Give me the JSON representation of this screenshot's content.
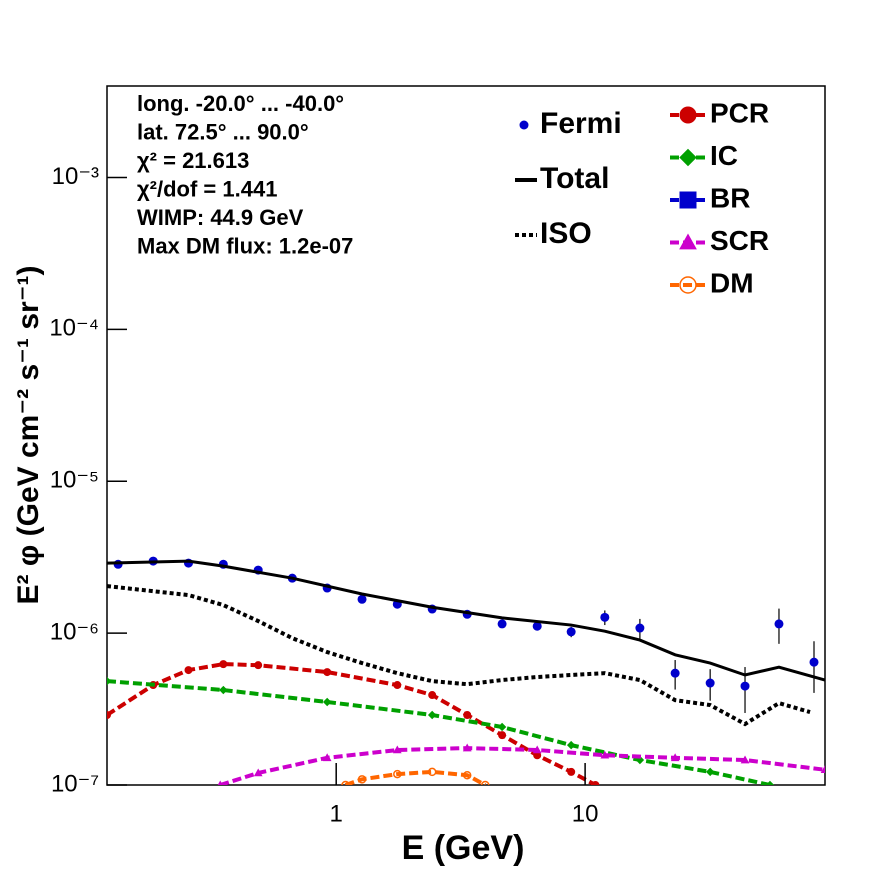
{
  "chart_data": {
    "type": "line",
    "x_label": "E (GeV)",
    "y_label": "E² φ (GeV cm⁻² s⁻¹ sr⁻¹)",
    "log_x": true,
    "log_y": true,
    "xlim": [
      0.12,
      92.0
    ],
    "ylim": [
      1e-07,
      0.004
    ],
    "xticks": [
      1,
      10
    ],
    "yticks": [
      {
        "value": 1e-07,
        "label": "10⁻⁷"
      },
      {
        "value": 1e-06,
        "label": "10⁻⁶"
      },
      {
        "value": 1e-05,
        "label": "10⁻⁵"
      },
      {
        "value": 0.0001,
        "label": "10⁻⁴"
      },
      {
        "value": 0.001,
        "label": "10⁻³"
      }
    ],
    "annotations": [
      "long. -20.0° ... -40.0°",
      "lat. 72.5° ... 90.0°",
      "χ² = 21.613",
      "χ²/dof = 1.441",
      "WIMP: 44.9 GeV",
      "Max DM flux: 1.2e-07"
    ],
    "series": [
      {
        "name": "Fermi",
        "type": "scatter",
        "color": "#0000cc",
        "legend_column": 1,
        "x": [
          0.133,
          0.184,
          0.255,
          0.352,
          0.486,
          0.666,
          0.92,
          1.27,
          1.76,
          2.43,
          3.36,
          4.64,
          6.42,
          8.79,
          12.0,
          16.6,
          23.0,
          31.8,
          43.9,
          60.1,
          83.1
        ],
        "values": [
          2.84e-06,
          2.98e-06,
          2.89e-06,
          2.84e-06,
          2.6e-06,
          2.3e-06,
          1.98e-06,
          1.67e-06,
          1.55e-06,
          1.44e-06,
          1.33e-06,
          1.15e-06,
          1.11e-06,
          1.02e-06,
          1.27e-06,
          1.08e-06,
          5.45e-07,
          4.69e-07,
          4.48e-07,
          1.15e-06,
          6.44e-07
        ],
        "errors": [
          5e-08,
          5e-08,
          5e-08,
          5e-08,
          5e-08,
          4e-08,
          4e-08,
          3e-08,
          3e-08,
          3e-08,
          3e-08,
          3e-08,
          6e-08,
          8e-08,
          1.4e-07,
          1.6e-07,
          1.2e-07,
          1.1e-07,
          1.5e-07,
          3e-07,
          2.4e-07
        ]
      },
      {
        "name": "Total",
        "type": "line",
        "style": "solid",
        "color": "#000000",
        "legend_column": 1,
        "x": [
          0.12,
          0.255,
          0.352,
          0.666,
          1.27,
          2.43,
          4.64,
          8.79,
          12.0,
          16.6,
          23.0,
          31.8,
          43.9,
          60.1,
          92.0
        ],
        "values": [
          2.89e-06,
          2.98e-06,
          2.76e-06,
          2.3e-06,
          1.81e-06,
          1.48e-06,
          1.26e-06,
          1.13e-06,
          1.03e-06,
          9e-07,
          7.2e-07,
          6.35e-07,
          5.3e-07,
          5.97e-07,
          4.91e-07
        ]
      },
      {
        "name": "ISO",
        "type": "line",
        "style": "dotted",
        "color": "#000000",
        "legend_column": 1,
        "x": [
          0.12,
          0.255,
          0.352,
          0.486,
          0.666,
          0.92,
          1.27,
          1.76,
          2.43,
          3.36,
          4.64,
          6.42,
          8.79,
          12.0,
          16.6,
          23.0,
          31.8,
          43.9,
          60.1,
          80.1
        ],
        "values": [
          2.04e-06,
          1.78e-06,
          1.53e-06,
          1.2e-06,
          9.27e-07,
          7.5e-07,
          6.35e-07,
          5.45e-07,
          4.83e-07,
          4.61e-07,
          4.91e-07,
          5.14e-07,
          5.3e-07,
          5.45e-07,
          4.91e-07,
          3.62e-07,
          3.36e-07,
          2.52e-07,
          3.46e-07,
          3.02e-07
        ]
      },
      {
        "name": "PCR",
        "type": "line",
        "style": "dashed",
        "marker": "circle",
        "color": "#cc0000",
        "legend_column": 2,
        "x": [
          0.12,
          0.184,
          0.255,
          0.352,
          0.486,
          0.92,
          1.76,
          2.43,
          3.36,
          4.64,
          6.42,
          8.79,
          11.0
        ],
        "values": [
          2.89e-07,
          4.55e-07,
          5.71e-07,
          6.25e-07,
          6.15e-07,
          5.54e-07,
          4.55e-07,
          3.91e-07,
          2.89e-07,
          2.13e-07,
          1.57e-07,
          1.22e-07,
          1e-07
        ]
      },
      {
        "name": "IC",
        "type": "line",
        "style": "dashed",
        "marker": "diamond",
        "color": "#00a000",
        "legend_column": 2,
        "x": [
          0.12,
          0.352,
          0.92,
          2.43,
          4.64,
          8.79,
          16.6,
          31.8,
          55.3
        ],
        "values": [
          4.83e-07,
          4.22e-07,
          3.52e-07,
          2.89e-07,
          2.41e-07,
          1.83e-07,
          1.46e-07,
          1.22e-07,
          1e-07
        ]
      },
      {
        "name": "BR",
        "type": "line",
        "style": "dashed",
        "marker": "square",
        "color": "#0000cc",
        "legend_column": 2,
        "x": [],
        "values": []
      },
      {
        "name": "SCR",
        "type": "line",
        "style": "dashed",
        "marker": "triangle",
        "color": "#cc00cc",
        "legend_column": 2,
        "x": [
          0.342,
          0.486,
          0.92,
          1.76,
          3.36,
          6.42,
          12.0,
          23.0,
          43.9,
          92.0
        ],
        "values": [
          1e-07,
          1.2e-07,
          1.51e-07,
          1.7e-07,
          1.75e-07,
          1.7e-07,
          1.57e-07,
          1.51e-07,
          1.46e-07,
          1.26e-07
        ]
      },
      {
        "name": "DM",
        "type": "line",
        "style": "dashed",
        "marker": "open-circle",
        "color": "#ff6600",
        "legend_column": 2,
        "x": [
          1.09,
          1.27,
          1.76,
          2.43,
          3.36,
          3.97
        ],
        "values": [
          1e-07,
          1.09e-07,
          1.18e-07,
          1.22e-07,
          1.16e-07,
          1e-07
        ]
      }
    ]
  }
}
